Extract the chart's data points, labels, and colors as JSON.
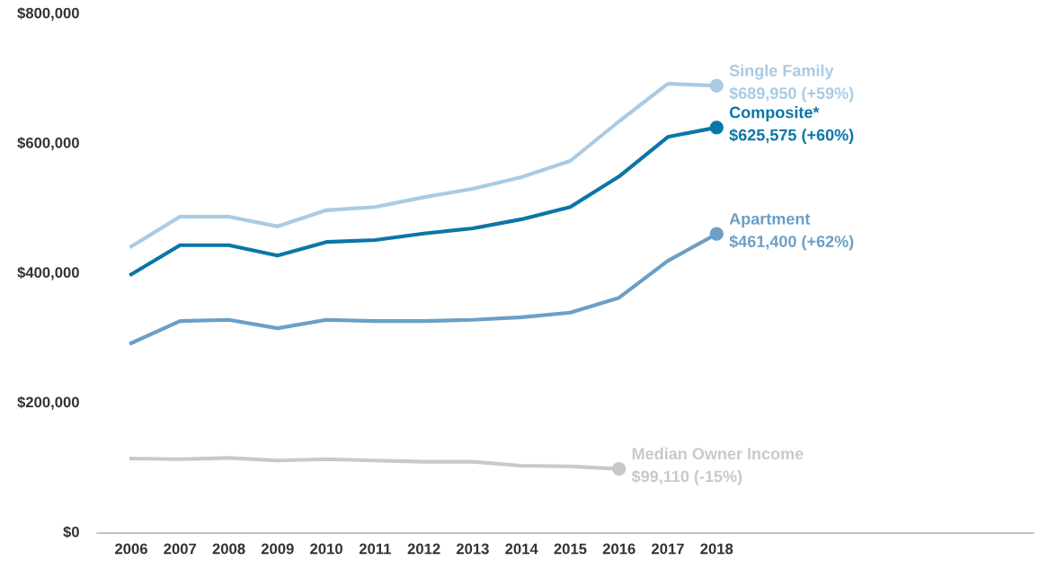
{
  "chart_data": {
    "type": "line",
    "categories": [
      "2006",
      "2007",
      "2008",
      "2009",
      "2010",
      "2011",
      "2012",
      "2013",
      "2014",
      "2015",
      "2016",
      "2017",
      "2018"
    ],
    "ylim": [
      0,
      800000
    ],
    "yticks": [
      {
        "value": 0,
        "label": "$0"
      },
      {
        "value": 200000,
        "label": "$200,000"
      },
      {
        "value": 400000,
        "label": "$400,000"
      },
      {
        "value": 600000,
        "label": "$600,000"
      },
      {
        "value": 800000,
        "label": "$800,000"
      }
    ],
    "grid": false,
    "legend": false,
    "line_style": "solid",
    "series": [
      {
        "name": "Single Family",
        "color": "#a9cbe3",
        "values": [
          442000,
          488000,
          488000,
          473000,
          498000,
          503000,
          518000,
          531000,
          549000,
          574000,
          635000,
          693000,
          689950
        ],
        "value_labels": [
          null,
          null,
          null,
          null,
          null,
          null,
          null,
          null,
          null,
          null,
          null,
          null,
          "$689,950 (+59%)"
        ]
      },
      {
        "name": "Composite*",
        "color": "#0b76a8",
        "values": [
          399000,
          444000,
          444000,
          428000,
          449000,
          452000,
          462000,
          470000,
          484000,
          503000,
          550000,
          611000,
          625575
        ],
        "value_labels": [
          null,
          null,
          null,
          null,
          null,
          null,
          null,
          null,
          null,
          null,
          null,
          null,
          "$625,575 (+60%)"
        ]
      },
      {
        "name": "Apartment",
        "color": "#6b9fc6",
        "values": [
          293000,
          327000,
          329000,
          316000,
          329000,
          327000,
          327000,
          329000,
          333000,
          340000,
          363000,
          420000,
          461400
        ],
        "value_labels": [
          null,
          null,
          null,
          null,
          null,
          null,
          null,
          null,
          null,
          null,
          null,
          null,
          "$461,400 (+62%)"
        ]
      },
      {
        "name": "Median Owner Income",
        "color": "#c9c9c5",
        "values": [
          115000,
          114000,
          116000,
          112000,
          114000,
          112000,
          110000,
          110000,
          104000,
          103000,
          99110,
          null,
          null
        ],
        "value_labels": [
          null,
          null,
          null,
          null,
          null,
          null,
          null,
          null,
          null,
          null,
          "$99,110 (-15%)",
          null,
          null
        ]
      }
    ]
  }
}
